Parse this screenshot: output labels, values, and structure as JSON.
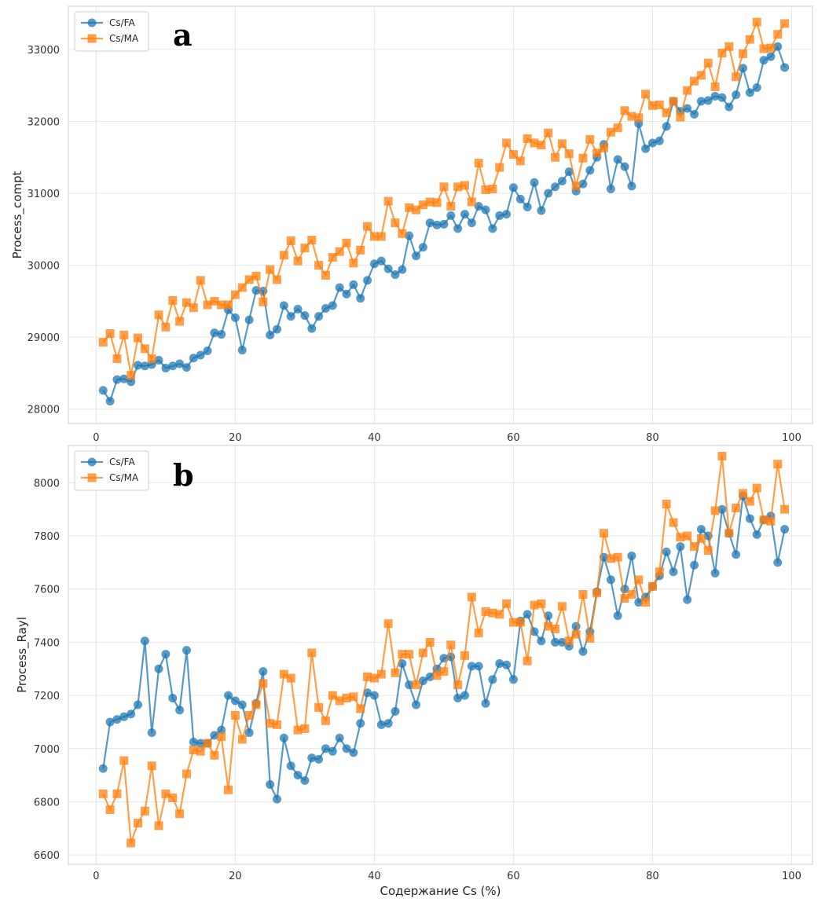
{
  "colors": {
    "cs_fa": "#1f77b4",
    "cs_ma": "#ff7f0e",
    "grid": "#e6e6e6",
    "frame": "#cccccc"
  },
  "chart_data": [
    {
      "type": "line",
      "panel_label": "a",
      "title": "",
      "xlabel": "",
      "ylabel": "Process_compt",
      "xlim": [
        -4,
        103
      ],
      "ylim": [
        27800,
        33600
      ],
      "xticks": [
        0,
        20,
        40,
        60,
        80,
        100
      ],
      "xtick_labels": [
        "0",
        "20",
        "40",
        "60",
        "80",
        "100"
      ],
      "yticks": [
        28000,
        29000,
        30000,
        31000,
        32000,
        33000
      ],
      "ytick_labels": [
        "28000",
        "29000",
        "30000",
        "31000",
        "32000",
        "33000"
      ],
      "grid": true,
      "legend": {
        "position": "top-left",
        "entries": [
          "Cs/FA",
          "Cs/MA"
        ]
      },
      "x": [
        1,
        2,
        3,
        4,
        5,
        6,
        7,
        8,
        9,
        10,
        11,
        12,
        13,
        14,
        15,
        16,
        17,
        18,
        19,
        20,
        21,
        22,
        23,
        24,
        25,
        26,
        27,
        28,
        29,
        30,
        31,
        32,
        33,
        34,
        35,
        36,
        37,
        38,
        39,
        40,
        41,
        42,
        43,
        44,
        45,
        46,
        47,
        48,
        49,
        50,
        51,
        52,
        53,
        54,
        55,
        56,
        57,
        58,
        59,
        60,
        61,
        62,
        63,
        64,
        65,
        66,
        67,
        68,
        69,
        70,
        71,
        72,
        73,
        74,
        75,
        76,
        77,
        78,
        79,
        80,
        81,
        82,
        83,
        84,
        85,
        86,
        87,
        88,
        89,
        90,
        91,
        92,
        93,
        94,
        95,
        96,
        97,
        98,
        99
      ],
      "series": [
        {
          "name": "Cs/FA",
          "marker": "circle",
          "values": [
            28260,
            28110,
            28410,
            28420,
            28380,
            28610,
            28600,
            28620,
            28680,
            28570,
            28600,
            28630,
            28580,
            28710,
            28750,
            28810,
            29060,
            29040,
            29380,
            29270,
            28820,
            29240,
            29650,
            29640,
            29030,
            29110,
            29440,
            29290,
            29390,
            29300,
            29120,
            29290,
            29400,
            29440,
            29690,
            29600,
            29730,
            29540,
            29790,
            30020,
            30060,
            29950,
            29870,
            29940,
            30410,
            30130,
            30250,
            30590,
            30560,
            30570,
            30690,
            30510,
            30710,
            30590,
            30820,
            30770,
            30510,
            30690,
            30710,
            31080,
            30920,
            30810,
            31150,
            30760,
            31000,
            31090,
            31170,
            31300,
            31030,
            31130,
            31320,
            31500,
            31680,
            31060,
            31470,
            31370,
            31100,
            31970,
            31620,
            31700,
            31730,
            31930,
            32280,
            32140,
            32180,
            32100,
            32280,
            32290,
            32350,
            32330,
            32200,
            32370,
            32740,
            32400,
            32470,
            32850,
            32900,
            33040,
            32750
          ]
        },
        {
          "name": "Cs/MA",
          "marker": "square",
          "values": [
            28930,
            29050,
            28700,
            29030,
            28470,
            28990,
            28840,
            28700,
            29310,
            29140,
            29510,
            29220,
            29480,
            29410,
            29790,
            29450,
            29500,
            29450,
            29450,
            29590,
            29690,
            29800,
            29850,
            29490,
            29940,
            29800,
            30140,
            30340,
            30060,
            30240,
            30350,
            30000,
            29860,
            30110,
            30190,
            30310,
            30030,
            30210,
            30540,
            30400,
            30400,
            30890,
            30590,
            30440,
            30800,
            30770,
            30840,
            30880,
            30870,
            31090,
            30820,
            31090,
            31110,
            30880,
            31420,
            31050,
            31060,
            31360,
            31700,
            31540,
            31450,
            31760,
            31700,
            31670,
            31840,
            31500,
            31690,
            31550,
            31100,
            31490,
            31750,
            31560,
            31630,
            31850,
            31910,
            32150,
            32070,
            32050,
            32380,
            32220,
            32230,
            32120,
            32280,
            32060,
            32430,
            32560,
            32640,
            32810,
            32480,
            32950,
            33040,
            32620,
            32940,
            33140,
            33380,
            33010,
            33020,
            33210,
            33360
          ]
        }
      ]
    },
    {
      "type": "line",
      "panel_label": "b",
      "title": "",
      "xlabel": "Содержание Cs (%)",
      "ylabel": "Process_Rayl",
      "xlim": [
        -4,
        103
      ],
      "ylim": [
        6565,
        8140
      ],
      "xticks": [
        0,
        20,
        40,
        60,
        80,
        100
      ],
      "xtick_labels": [
        "0",
        "20",
        "40",
        "60",
        "80",
        "100"
      ],
      "yticks": [
        6600,
        6800,
        7000,
        7200,
        7400,
        7600,
        7800,
        8000
      ],
      "ytick_labels": [
        "6600",
        "6800",
        "7000",
        "7200",
        "7400",
        "7600",
        "7800",
        "8000"
      ],
      "grid": true,
      "legend": {
        "position": "top-left",
        "entries": [
          "Cs/FA",
          "Cs/MA"
        ]
      },
      "x": [
        1,
        2,
        3,
        4,
        5,
        6,
        7,
        8,
        9,
        10,
        11,
        12,
        13,
        14,
        15,
        16,
        17,
        18,
        19,
        20,
        21,
        22,
        23,
        24,
        25,
        26,
        27,
        28,
        29,
        30,
        31,
        32,
        33,
        34,
        35,
        36,
        37,
        38,
        39,
        40,
        41,
        42,
        43,
        44,
        45,
        46,
        47,
        48,
        49,
        50,
        51,
        52,
        53,
        54,
        55,
        56,
        57,
        58,
        59,
        60,
        61,
        62,
        63,
        64,
        65,
        66,
        67,
        68,
        69,
        70,
        71,
        72,
        73,
        74,
        75,
        76,
        77,
        78,
        79,
        80,
        81,
        82,
        83,
        84,
        85,
        86,
        87,
        88,
        89,
        90,
        91,
        92,
        93,
        94,
        95,
        96,
        97,
        98,
        99
      ],
      "series": [
        {
          "name": "Cs/FA",
          "marker": "circle",
          "values": [
            6925,
            7100,
            7110,
            7120,
            7130,
            7165,
            7405,
            7060,
            7300,
            7355,
            7190,
            7145,
            7370,
            7025,
            7020,
            7020,
            7050,
            7070,
            7200,
            7180,
            7165,
            7060,
            7170,
            7290,
            6865,
            6810,
            7040,
            6935,
            6900,
            6880,
            6965,
            6960,
            7000,
            6990,
            7040,
            7000,
            6985,
            7095,
            7210,
            7200,
            7090,
            7095,
            7140,
            7320,
            7240,
            7165,
            7255,
            7270,
            7300,
            7340,
            7345,
            7190,
            7200,
            7310,
            7310,
            7170,
            7260,
            7320,
            7315,
            7260,
            7480,
            7505,
            7440,
            7405,
            7500,
            7400,
            7400,
            7385,
            7460,
            7365,
            7440,
            7590,
            7720,
            7635,
            7500,
            7600,
            7725,
            7550,
            7570,
            7610,
            7650,
            7740,
            7665,
            7760,
            7560,
            7690,
            7825,
            7800,
            7660,
            7900,
            7810,
            7730,
            7950,
            7865,
            7805,
            7860,
            7875,
            7700,
            7825
          ]
        },
        {
          "name": "Cs/MA",
          "marker": "square",
          "values": [
            6830,
            6770,
            6830,
            6955,
            6645,
            6720,
            6765,
            6935,
            6710,
            6830,
            6815,
            6755,
            6905,
            6995,
            6990,
            7020,
            6975,
            7045,
            6845,
            7125,
            7035,
            7125,
            7165,
            7245,
            7095,
            7090,
            7280,
            7265,
            7070,
            7075,
            7360,
            7155,
            7105,
            7200,
            7180,
            7190,
            7195,
            7150,
            7270,
            7265,
            7280,
            7470,
            7285,
            7355,
            7355,
            7240,
            7360,
            7400,
            7275,
            7290,
            7390,
            7240,
            7350,
            7570,
            7435,
            7515,
            7510,
            7505,
            7545,
            7475,
            7475,
            7330,
            7540,
            7545,
            7460,
            7450,
            7535,
            7405,
            7430,
            7580,
            7415,
            7585,
            7810,
            7715,
            7720,
            7565,
            7580,
            7635,
            7550,
            7610,
            7665,
            7920,
            7850,
            7795,
            7800,
            7760,
            7790,
            7745,
            7895,
            8100,
            7810,
            7905,
            7960,
            7930,
            7980,
            7860,
            7855,
            8070,
            7900
          ]
        }
      ]
    }
  ]
}
